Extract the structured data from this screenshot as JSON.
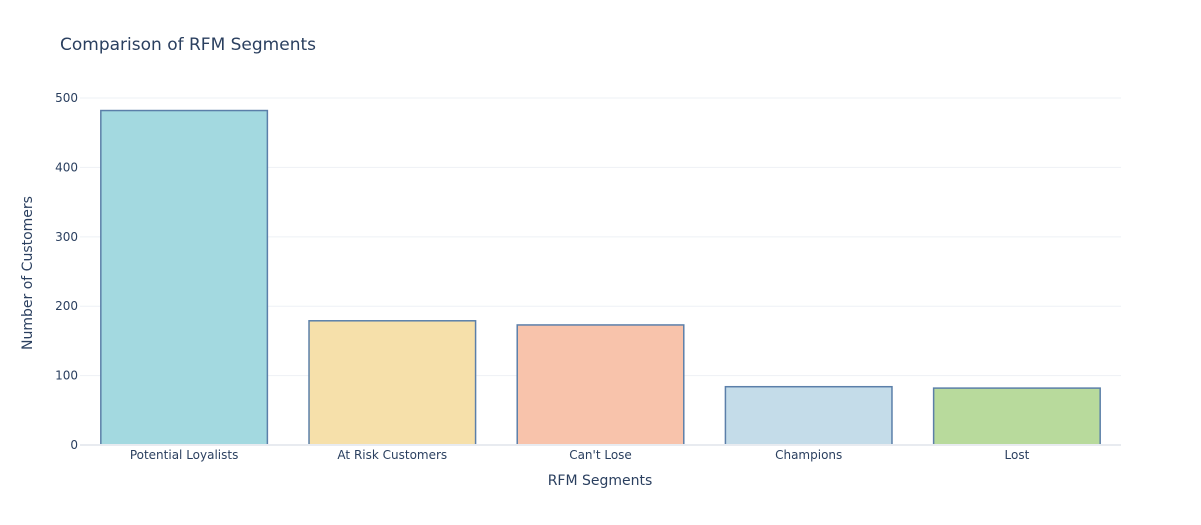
{
  "chart_data": {
    "type": "bar",
    "title": "Comparison of RFM Segments",
    "xlabel": "RFM Segments",
    "ylabel": "Number of Customers",
    "categories": [
      "Potential Loyalists",
      "At Risk Customers",
      "Can't Lose",
      "Champions",
      "Lost"
    ],
    "values": [
      482,
      179,
      173,
      84,
      82
    ],
    "colors": [
      "#a3d9e0",
      "#f6e0aa",
      "#f8c3ab",
      "#c4dce9",
      "#b8da9c"
    ],
    "bar_outline_color": "#5b7fa9",
    "ylim": [
      0,
      526
    ],
    "yticks": [
      0,
      100,
      200,
      300,
      400,
      500
    ],
    "grid": true,
    "legend": false
  }
}
